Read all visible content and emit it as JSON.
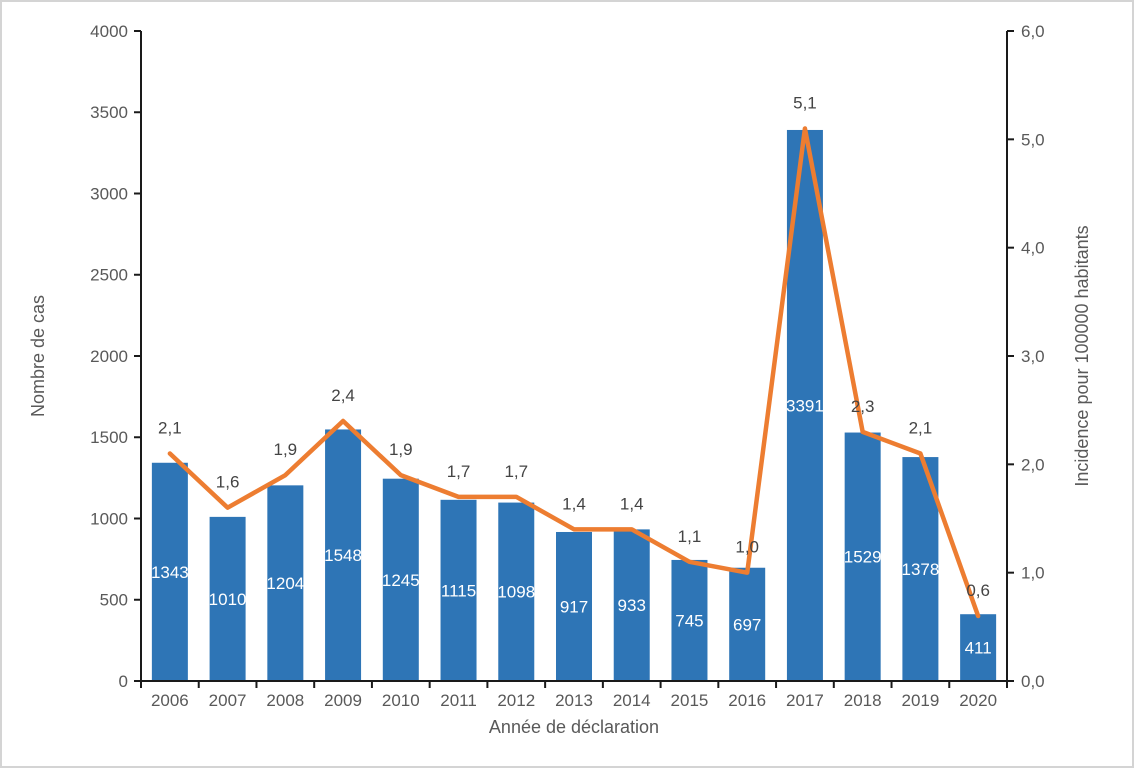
{
  "figure": {
    "background": "#ffffff",
    "border_color": "#d4d4d4"
  },
  "chart_data": {
    "type": "bar",
    "subtype": "combo-bar-line-dual-axis",
    "title": "",
    "xlabel": "Année de déclaration",
    "ylabel_left": "Nombre de cas",
    "ylabel_right": "Incidence pour 100000 habitants",
    "grid": false,
    "legend": "none",
    "categories": [
      "2006",
      "2007",
      "2008",
      "2009",
      "2010",
      "2011",
      "2012",
      "2013",
      "2014",
      "2015",
      "2016",
      "2017",
      "2018",
      "2019",
      "2020"
    ],
    "series": [
      {
        "name": "Nombre de cas",
        "type": "bar",
        "axis": "left",
        "values": [
          1343,
          1010,
          1204,
          1548,
          1245,
          1115,
          1098,
          917,
          933,
          745,
          697,
          3391,
          1529,
          1378,
          411
        ],
        "labels": [
          "1343",
          "1010",
          "1204",
          "1548",
          "1245",
          "1115",
          "1098",
          "917",
          "933",
          "745",
          "697",
          "3391",
          "1529",
          "1378",
          "411"
        ]
      },
      {
        "name": "Incidence pour 100000 habitants",
        "type": "line",
        "axis": "right",
        "values": [
          2.1,
          1.6,
          1.9,
          2.4,
          1.9,
          1.7,
          1.7,
          1.4,
          1.4,
          1.1,
          1.0,
          5.1,
          2.3,
          2.1,
          0.6
        ],
        "labels": [
          "2,1",
          "1,6",
          "1,9",
          "2,4",
          "1,9",
          "1,7",
          "1,7",
          "1,4",
          "1,4",
          "1,1",
          "1,0",
          "5,1",
          "2,3",
          "2,1",
          "0,6"
        ]
      }
    ],
    "left_axis": {
      "min": 0,
      "max": 4000,
      "tick_step": 500,
      "tick_values": [
        0,
        500,
        1000,
        1500,
        2000,
        2500,
        3000,
        3500,
        4000
      ],
      "tick_labels": [
        "0",
        "500",
        "1000",
        "1500",
        "2000",
        "2500",
        "3000",
        "3500",
        "4000"
      ]
    },
    "right_axis": {
      "min": 0,
      "max": 6,
      "tick_step": 1,
      "tick_values": [
        0,
        1,
        2,
        3,
        4,
        5,
        6
      ],
      "tick_labels": [
        "0,0",
        "1,0",
        "2,0",
        "3,0",
        "4,0",
        "5,0",
        "6,0"
      ]
    }
  },
  "colors": {
    "bar": "#2E75B6",
    "line": "#ED7D31",
    "axis": "#1a1a1a",
    "tick_text": "#595959",
    "data_label": "#444444",
    "bar_label": "#ffffff"
  }
}
